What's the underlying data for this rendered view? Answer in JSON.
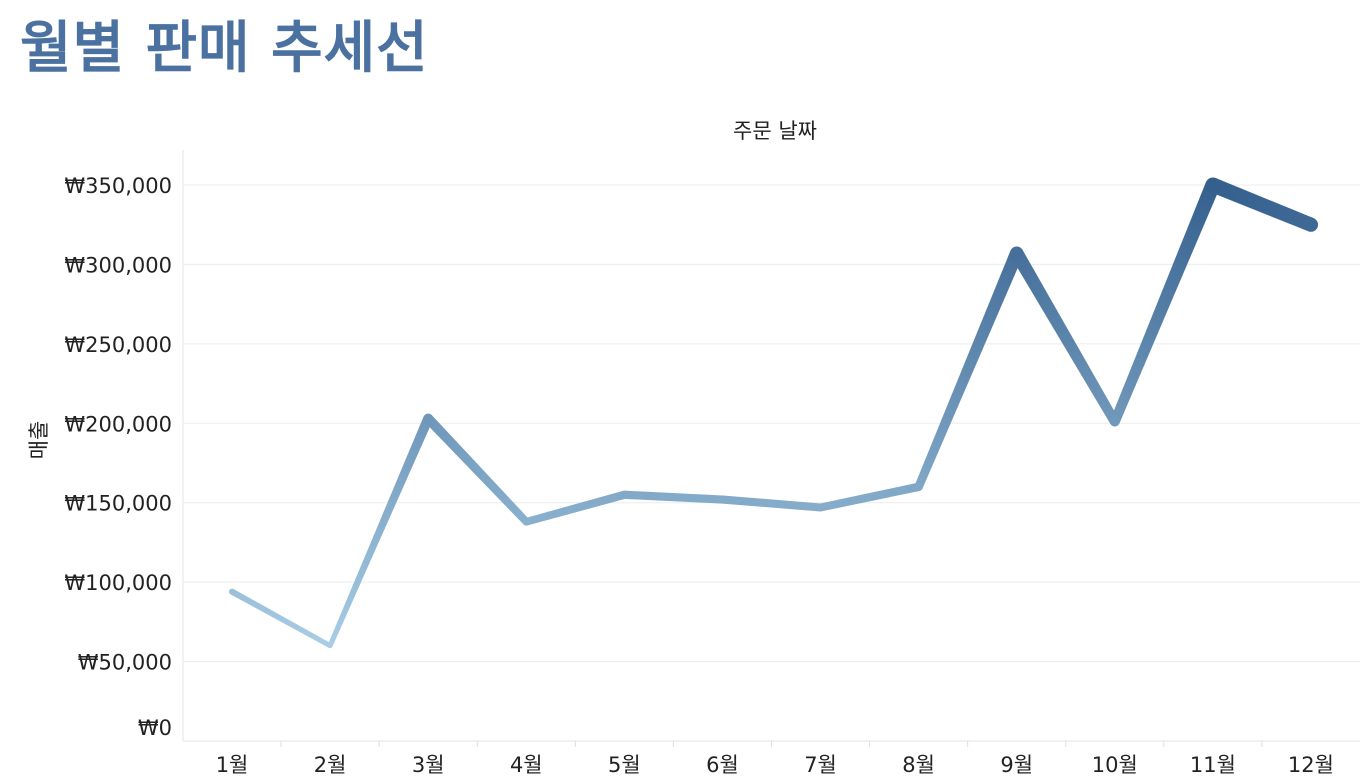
{
  "page": {
    "title": "월별 판매 추세선"
  },
  "chart_data": {
    "type": "line",
    "title": "월별 판매 추세선",
    "xlabel": "주문 날짜",
    "ylabel": "매출",
    "x_axis_position": "top",
    "categories": [
      "1월",
      "2월",
      "3월",
      "4월",
      "5월",
      "6월",
      "7월",
      "8월",
      "9월",
      "10월",
      "11월",
      "12월"
    ],
    "series": [
      {
        "values": [
          94000,
          60000,
          203000,
          138000,
          155000,
          152000,
          147000,
          160000,
          307000,
          201000,
          350000,
          325000
        ],
        "color_start": "#a8cde4",
        "color_end": "#35608e",
        "encoding": "line thickness and color increase with value"
      }
    ],
    "ylim": [
      0,
      375000
    ],
    "yticks": [
      0,
      50000,
      100000,
      150000,
      200000,
      250000,
      300000,
      350000
    ],
    "ytick_labels": [
      "₩0",
      "₩50,000",
      "₩100,000",
      "₩150,000",
      "₩200,000",
      "₩250,000",
      "₩300,000",
      "₩350,000"
    ],
    "grid": true,
    "legend": "none"
  }
}
